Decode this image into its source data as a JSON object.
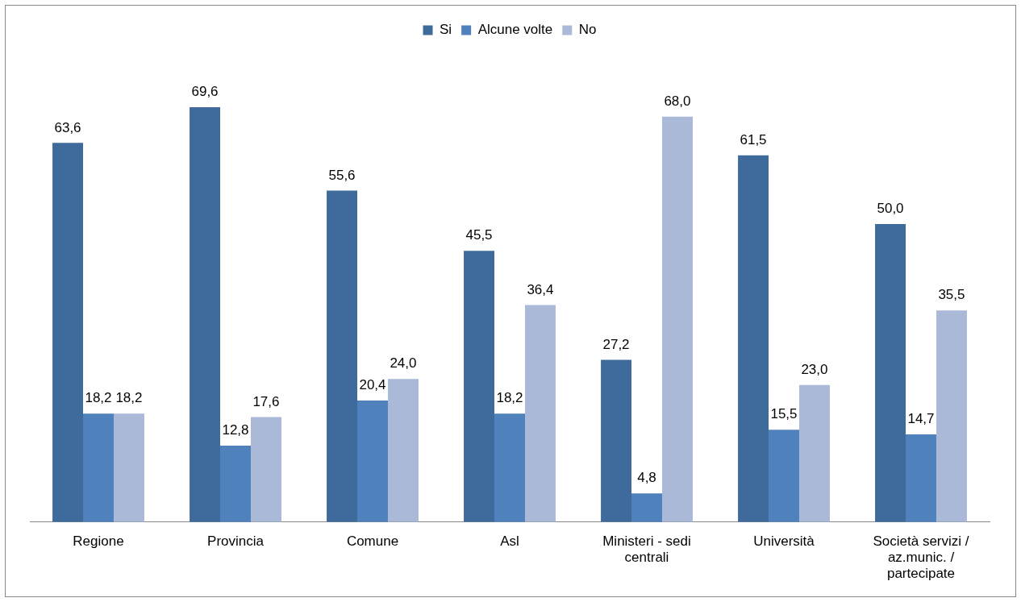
{
  "chart_data": {
    "type": "bar",
    "categories": [
      "Regione",
      "Provincia",
      "Comune",
      "Asl",
      "Ministeri - sedi centrali",
      "Università",
      "Società servizi / az.munic. / partecipate"
    ],
    "series": [
      {
        "name": "Si",
        "color": "#3f6a9c",
        "values": [
          63.6,
          69.6,
          55.6,
          45.5,
          27.2,
          61.5,
          50.0
        ],
        "value_labels": [
          "63,6",
          "69,6",
          "55,6",
          "45,5",
          "27,2",
          "61,5",
          "50,0"
        ]
      },
      {
        "name": "Alcune volte",
        "color": "#4f81bd",
        "values": [
          18.2,
          12.8,
          20.4,
          18.2,
          4.8,
          15.5,
          14.7
        ],
        "value_labels": [
          "18,2",
          "12,8",
          "20,4",
          "18,2",
          "4,8",
          "15,5",
          "14,7"
        ]
      },
      {
        "name": "No",
        "color": "#aab9d8",
        "values": [
          18.2,
          17.6,
          24.0,
          36.4,
          68.0,
          23.0,
          35.5
        ],
        "value_labels": [
          "18,2",
          "17,6",
          "24,0",
          "36,4",
          "68,0",
          "23,0",
          "35,5"
        ]
      }
    ],
    "legend": "top"
  }
}
